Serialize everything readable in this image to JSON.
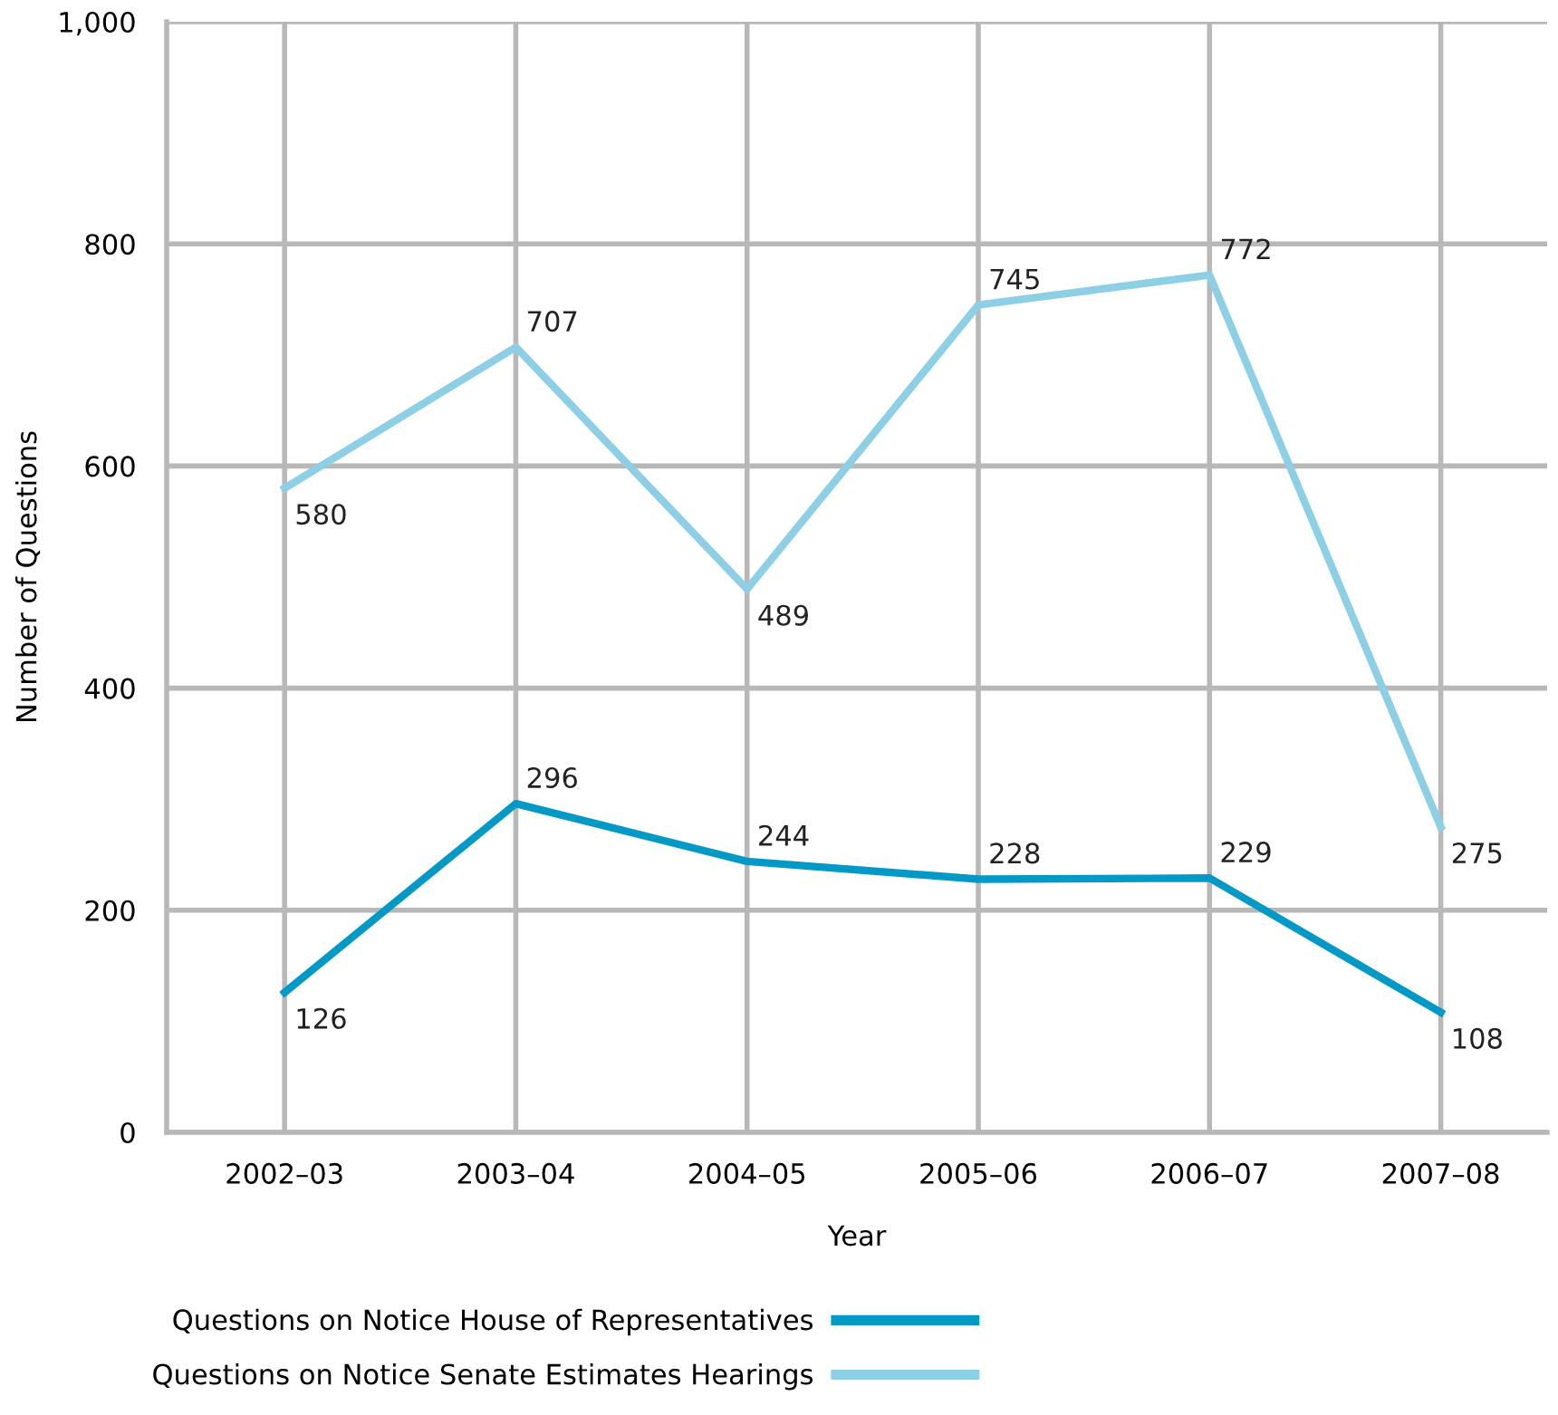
{
  "chart_data": {
    "type": "line",
    "xlabel": "Year",
    "ylabel": "Number of Questions",
    "categories": [
      "2002–03",
      "2003–04",
      "2004–05",
      "2005–06",
      "2006–07",
      "2007–08"
    ],
    "series": [
      {
        "name": "Questions on Notice House of Representatives",
        "color": "#0399c6",
        "values": [
          126,
          296,
          244,
          228,
          229,
          108
        ]
      },
      {
        "name": "Questions on Notice Senate Estimates Hearings",
        "color": "#8dd0e6",
        "values": [
          580,
          707,
          489,
          745,
          772,
          275
        ]
      }
    ],
    "ylim": [
      0,
      1000
    ],
    "yticks": [
      0,
      200,
      400,
      600,
      800,
      {
        "value": 1000,
        "label": "1,000"
      }
    ],
    "grid": true,
    "legend": "bottom left",
    "data_labels": true,
    "marker": "none",
    "line_style": "solid"
  }
}
